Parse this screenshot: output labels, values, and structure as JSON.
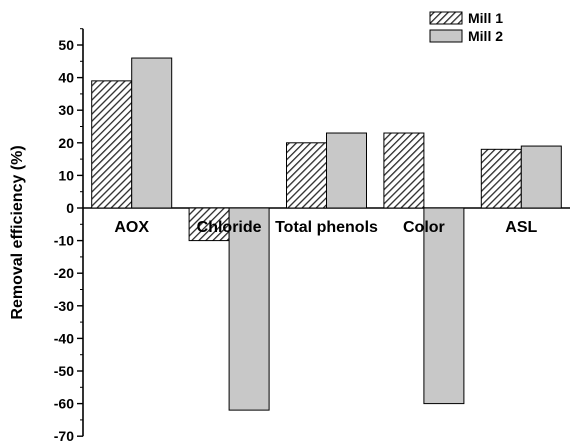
{
  "chart_data": {
    "type": "bar",
    "title": "",
    "xlabel": "",
    "ylabel": "Removal efficiency (%)",
    "categories": [
      "AOX",
      "Chloride",
      "Total phenols",
      "Color",
      "ASL"
    ],
    "series": [
      {
        "name": "Mill 1",
        "values": [
          39,
          -10,
          20,
          23,
          18
        ],
        "fill": "hatched",
        "color": "#3a3a3a"
      },
      {
        "name": "Mill 2",
        "values": [
          46,
          -62,
          23,
          -60,
          19
        ],
        "fill": "solid",
        "color": "#c8c8c8"
      }
    ],
    "ylim": [
      -70,
      55
    ],
    "yticks": [
      50,
      40,
      30,
      20,
      10,
      0,
      -10,
      -20,
      -30,
      -40,
      -50,
      -60,
      -70
    ],
    "grid": false,
    "legend_position": "top-right"
  }
}
